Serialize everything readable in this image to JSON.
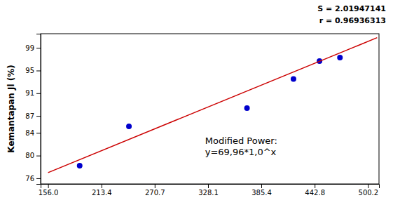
{
  "chart_data": {
    "type": "scatter",
    "y_label": "Kemantapan Jl (%)",
    "series": [
      {
        "type": "scatter",
        "color": "#0000cc",
        "x": [
          190,
          243,
          370,
          420,
          448,
          470
        ],
        "values": [
          78.23,
          85.16,
          88.37,
          93.51,
          96.68,
          97.3
        ]
      },
      {
        "type": "line",
        "color": "#cc0000",
        "x": [
          156.0,
          510.0
        ],
        "values": [
          77.0,
          100.8
        ]
      }
    ],
    "xlim": [
      148.0,
      512.0
    ],
    "ylim": [
      75.0,
      101.5
    ],
    "xticks": [
      {
        "value": 156.0,
        "label": "156.0"
      },
      213.4,
      270.7,
      328.1,
      385.4,
      442.8,
      500.2
    ],
    "yticks": [
      76,
      80,
      84,
      87,
      91,
      95,
      99
    ],
    "annotations": [
      "Modified Power:\ny=69,96*1,0^x",
      "S = 2.01947141",
      "r = 0.96936313"
    ]
  }
}
